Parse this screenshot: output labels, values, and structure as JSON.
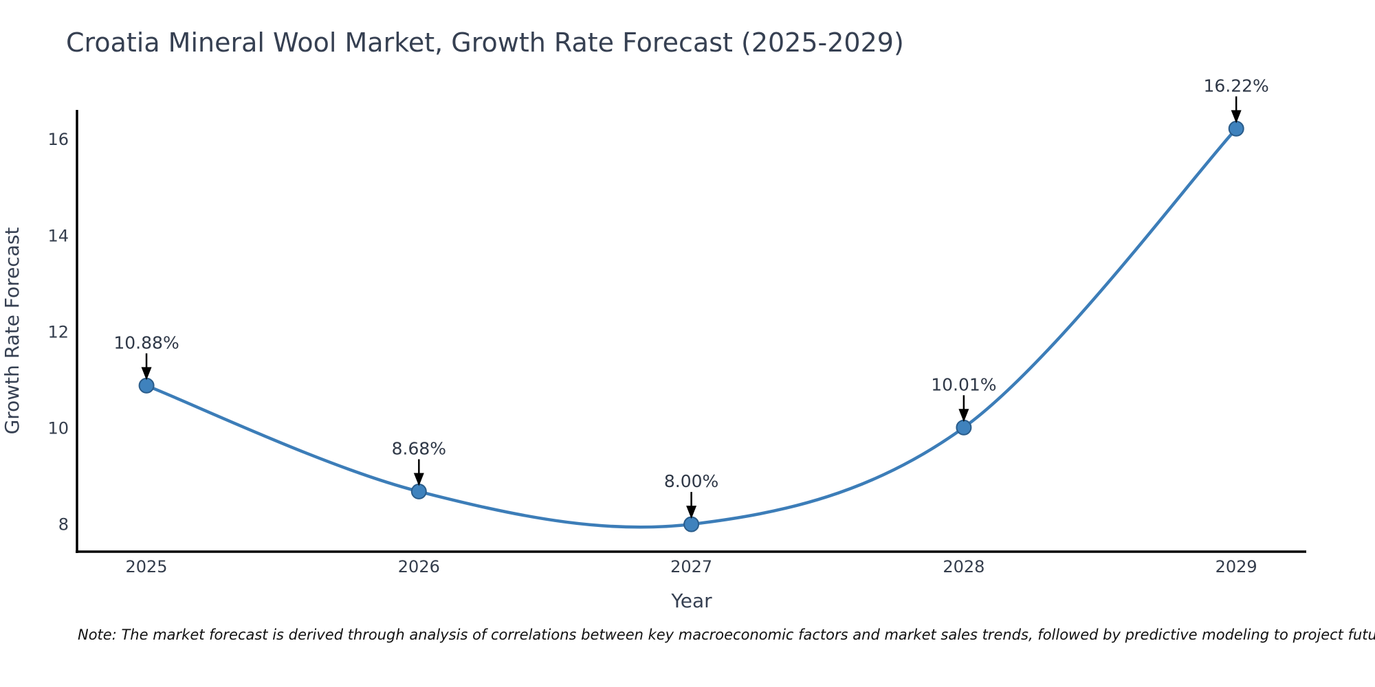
{
  "title": "Croatia Mineral Wool Market, Growth Rate Forecast (2025-2029)",
  "note": "Note: The market forecast is derived through analysis of correlations between key macroeconomic factors and market sales trends, followed by predictive modeling to project future sales.",
  "chart_data": {
    "type": "line",
    "title": "Croatia Mineral Wool Market, Growth Rate Forecast (2025-2029)",
    "xlabel": "Year",
    "ylabel": "Growth Rate Forecast",
    "x": [
      2025,
      2026,
      2027,
      2028,
      2029
    ],
    "values": [
      10.88,
      8.68,
      8.0,
      10.01,
      16.22
    ],
    "point_labels": [
      "10.88%",
      "8.68%",
      "8.00%",
      "10.01%",
      "16.22%"
    ],
    "x_ticks": [
      "2025",
      "2026",
      "2027",
      "2028",
      "2029"
    ],
    "y_ticks": [
      8,
      10,
      12,
      14,
      16
    ],
    "xlim": [
      2024.745,
      2029.257
    ],
    "ylim": [
      7.43,
      16.61
    ],
    "grid": false,
    "legend": null,
    "smooth": true,
    "annotations_have_arrows": true,
    "colors": {
      "line": "#3c7db8",
      "marker_fill": "#3f82bd",
      "marker_edge": "#2a5c8a",
      "axis": "#000000",
      "arrow": "#000000",
      "tick_text": "#343d4c",
      "label_text": "#364052",
      "annotation_text": "#2f3847",
      "background": "#ffffff"
    }
  }
}
